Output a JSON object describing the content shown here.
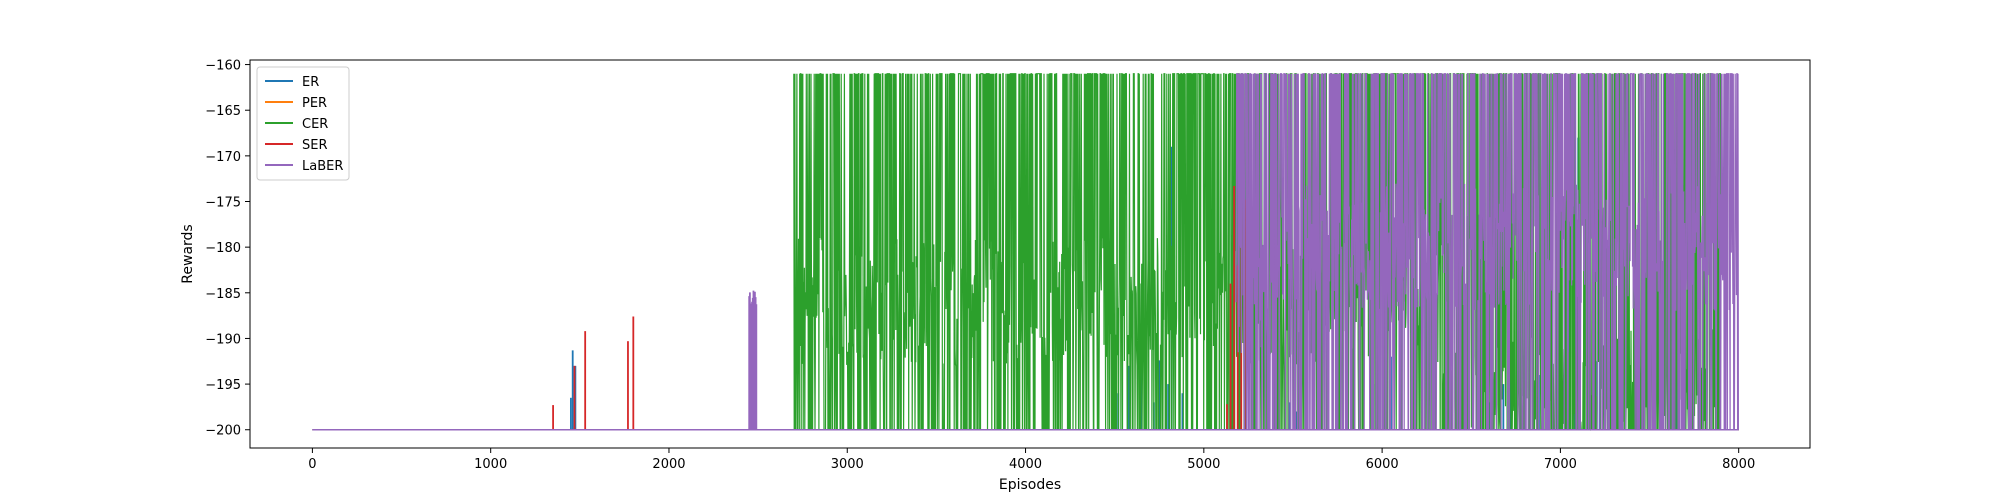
{
  "chart_data": {
    "type": "line",
    "title": "",
    "xlabel": "Episodes",
    "ylabel": "Rewards",
    "xlim": [
      -350,
      8400
    ],
    "ylim": [
      -202,
      -159.5
    ],
    "xticks": [
      0,
      1000,
      2000,
      3000,
      4000,
      5000,
      6000,
      7000,
      8000
    ],
    "yticks": [
      -200,
      -195,
      -190,
      -185,
      -180,
      -175,
      -170,
      -165,
      -160
    ],
    "grid": false,
    "legend_position": "top-left",
    "x_range": [
      0,
      8000
    ],
    "baseline": -200,
    "series": [
      {
        "name": "ER",
        "color": "#1f77b4",
        "spikes": [
          [
            1450,
            -196.5
          ],
          [
            1460,
            -191.3
          ],
          [
            1475,
            -193
          ],
          [
            4500,
            -189.5
          ],
          [
            4520,
            -196
          ],
          [
            4580,
            -193
          ],
          [
            4650,
            -188.5
          ],
          [
            4720,
            -197
          ],
          [
            4750,
            -192.4
          ],
          [
            4800,
            -195
          ],
          [
            4820,
            -169
          ],
          [
            4880,
            -196
          ],
          [
            5480,
            -197
          ],
          [
            5520,
            -198
          ],
          [
            5950,
            -195
          ],
          [
            6020,
            -185.5
          ],
          [
            6050,
            -192
          ],
          [
            6550,
            -196
          ],
          [
            6600,
            -197
          ],
          [
            6680,
            -195
          ],
          [
            6720,
            -191
          ],
          [
            6800,
            -198
          ],
          [
            6880,
            -194
          ],
          [
            7000,
            -196
          ],
          [
            7050,
            -174
          ],
          [
            7080,
            -161.5
          ],
          [
            7100,
            -168
          ],
          [
            7150,
            -196
          ],
          [
            7200,
            -192.5
          ],
          [
            7220,
            -172
          ],
          [
            7250,
            -193.5
          ],
          [
            7300,
            -196
          ],
          [
            7400,
            -197
          ],
          [
            7450,
            -194.5
          ],
          [
            7500,
            -196
          ],
          [
            7620,
            -197
          ],
          [
            7650,
            -193.4
          ]
        ]
      },
      {
        "name": "PER",
        "color": "#ff7f0e",
        "spikes": []
      },
      {
        "name": "CER",
        "color": "#2ca02c",
        "active": [
          [
            2700,
            6340,
            -186
          ],
          [
            6340,
            7900,
            -196
          ]
        ],
        "noise_low": -200,
        "noise_high": -161
      },
      {
        "name": "SER",
        "color": "#d62728",
        "spikes": [
          [
            1350,
            -197.3
          ],
          [
            1470,
            -193
          ],
          [
            1530,
            -189.2
          ],
          [
            1770,
            -190.3
          ],
          [
            1800,
            -187.6
          ],
          [
            5130,
            -197.2
          ],
          [
            5150,
            -184
          ],
          [
            5170,
            -173.3
          ],
          [
            5190,
            -182
          ],
          [
            5210,
            -176
          ],
          [
            5230,
            -174.8
          ],
          [
            5250,
            -178
          ]
        ]
      },
      {
        "name": "LaBER",
        "color": "#9467bd",
        "burst": [
          2450,
          2490,
          -186.5
        ],
        "active": [
          [
            5180,
            5400,
            -185
          ],
          [
            5400,
            8000,
            -180
          ]
        ],
        "noise_low": -200,
        "noise_high": -161
      }
    ]
  }
}
